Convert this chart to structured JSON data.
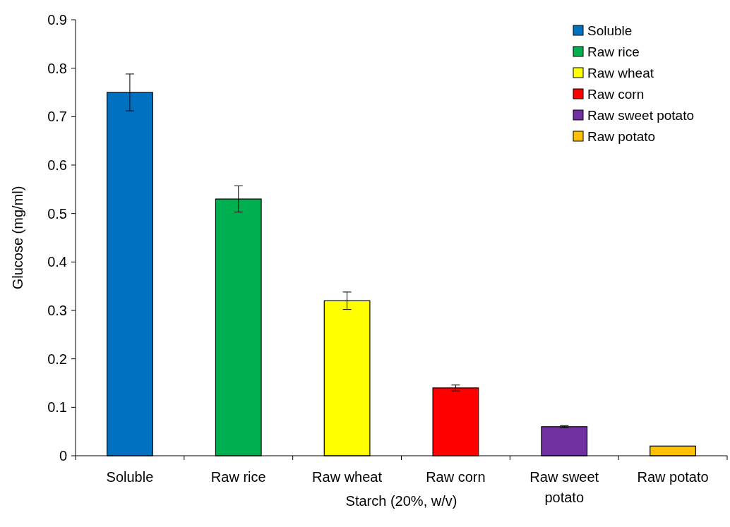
{
  "chart_data": {
    "type": "bar",
    "xlabel": "Starch (20%, w/v)",
    "ylabel": "Glucose (mg/ml)",
    "categories": [
      "Soluble",
      "Raw rice",
      "Raw wheat",
      "Raw corn",
      "Raw sweet potato",
      "Raw potato"
    ],
    "series": [
      {
        "name": "Soluble",
        "color": "#0070c0",
        "values": [
          0.75,
          null,
          null,
          null,
          null,
          null
        ],
        "errors": [
          0.038,
          null,
          null,
          null,
          null,
          null
        ]
      },
      {
        "name": "Raw rice",
        "color": "#00b050",
        "values": [
          null,
          0.53,
          null,
          null,
          null,
          null
        ],
        "errors": [
          null,
          0.027,
          null,
          null,
          null,
          null
        ]
      },
      {
        "name": "Raw wheat",
        "color": "#ffff00",
        "values": [
          null,
          null,
          0.32,
          null,
          null,
          null
        ],
        "errors": [
          null,
          null,
          0.018,
          null,
          null,
          null
        ]
      },
      {
        "name": "Raw corn",
        "color": "#ff0000",
        "values": [
          null,
          null,
          null,
          0.14,
          null,
          null
        ],
        "errors": [
          null,
          null,
          null,
          0.006,
          null,
          null
        ]
      },
      {
        "name": "Raw sweet potato",
        "color": "#7030a0",
        "values": [
          null,
          null,
          null,
          null,
          0.06,
          null
        ],
        "errors": [
          null,
          null,
          null,
          null,
          0.002,
          null
        ]
      },
      {
        "name": "Raw potato",
        "color": "#ffc000",
        "values": [
          null,
          null,
          null,
          null,
          null,
          0.02
        ]
      }
    ],
    "ylim": [
      0,
      0.9
    ],
    "yticks": [
      0,
      0.1,
      0.2,
      0.3,
      0.4,
      0.5,
      0.6,
      0.7,
      0.8,
      0.9
    ],
    "legend": "top right"
  }
}
